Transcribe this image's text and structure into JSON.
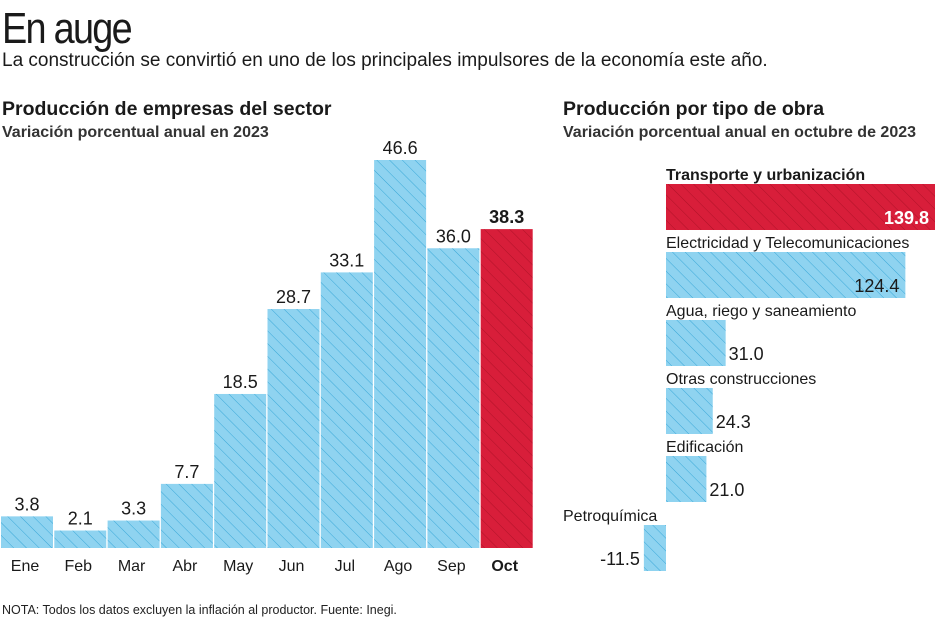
{
  "header": {
    "title": "En auge",
    "subtitle": "La construcción se convirtió en uno de los principales impulsores de la economía este año."
  },
  "colors": {
    "bar_blue": "#8fd3f0",
    "bar_blue_stroke": "#2ea6d6",
    "highlight_red": "#d81e3a",
    "text": "#1a1a1a"
  },
  "chart_data": [
    {
      "type": "bar",
      "title": "Producción de empresas del sector",
      "subtitle": "Variación porcentual anual en 2023",
      "categories": [
        "Ene",
        "Feb",
        "Mar",
        "Abr",
        "May",
        "Jun",
        "Jul",
        "Ago",
        "Sep",
        "Oct"
      ],
      "values": [
        3.8,
        2.1,
        3.3,
        7.7,
        18.5,
        28.7,
        33.1,
        46.6,
        36.0,
        38.3
      ],
      "labels": [
        "3.8",
        "2.1",
        "3.3",
        "7.7",
        "18.5",
        "28.7",
        "33.1",
        "46.6",
        "36.0",
        "38.3"
      ],
      "highlight_index": 9,
      "xlabel": "",
      "ylabel": "",
      "ylim": [
        0,
        46.6
      ],
      "grid": false
    },
    {
      "type": "bar",
      "orientation": "horizontal",
      "title": "Producción por tipo de obra",
      "subtitle": "Variación porcentual anual en octubre de 2023",
      "categories": [
        "Transporte y urbanización",
        "Electricidad y Telecomunicaciones",
        "Agua, riego y saneamiento",
        "Otras construcciones",
        "Edificación",
        "Petroquímica"
      ],
      "values": [
        139.8,
        124.4,
        31.0,
        24.3,
        21.0,
        -11.5
      ],
      "labels": [
        "139.8",
        "124.4",
        "31.0",
        "24.3",
        "21.0",
        "-11.5"
      ],
      "highlight_index": 0,
      "grid": false
    }
  ],
  "note": "NOTA: Todos los datos excluyen la inflación al productor. Fuente: Inegi."
}
